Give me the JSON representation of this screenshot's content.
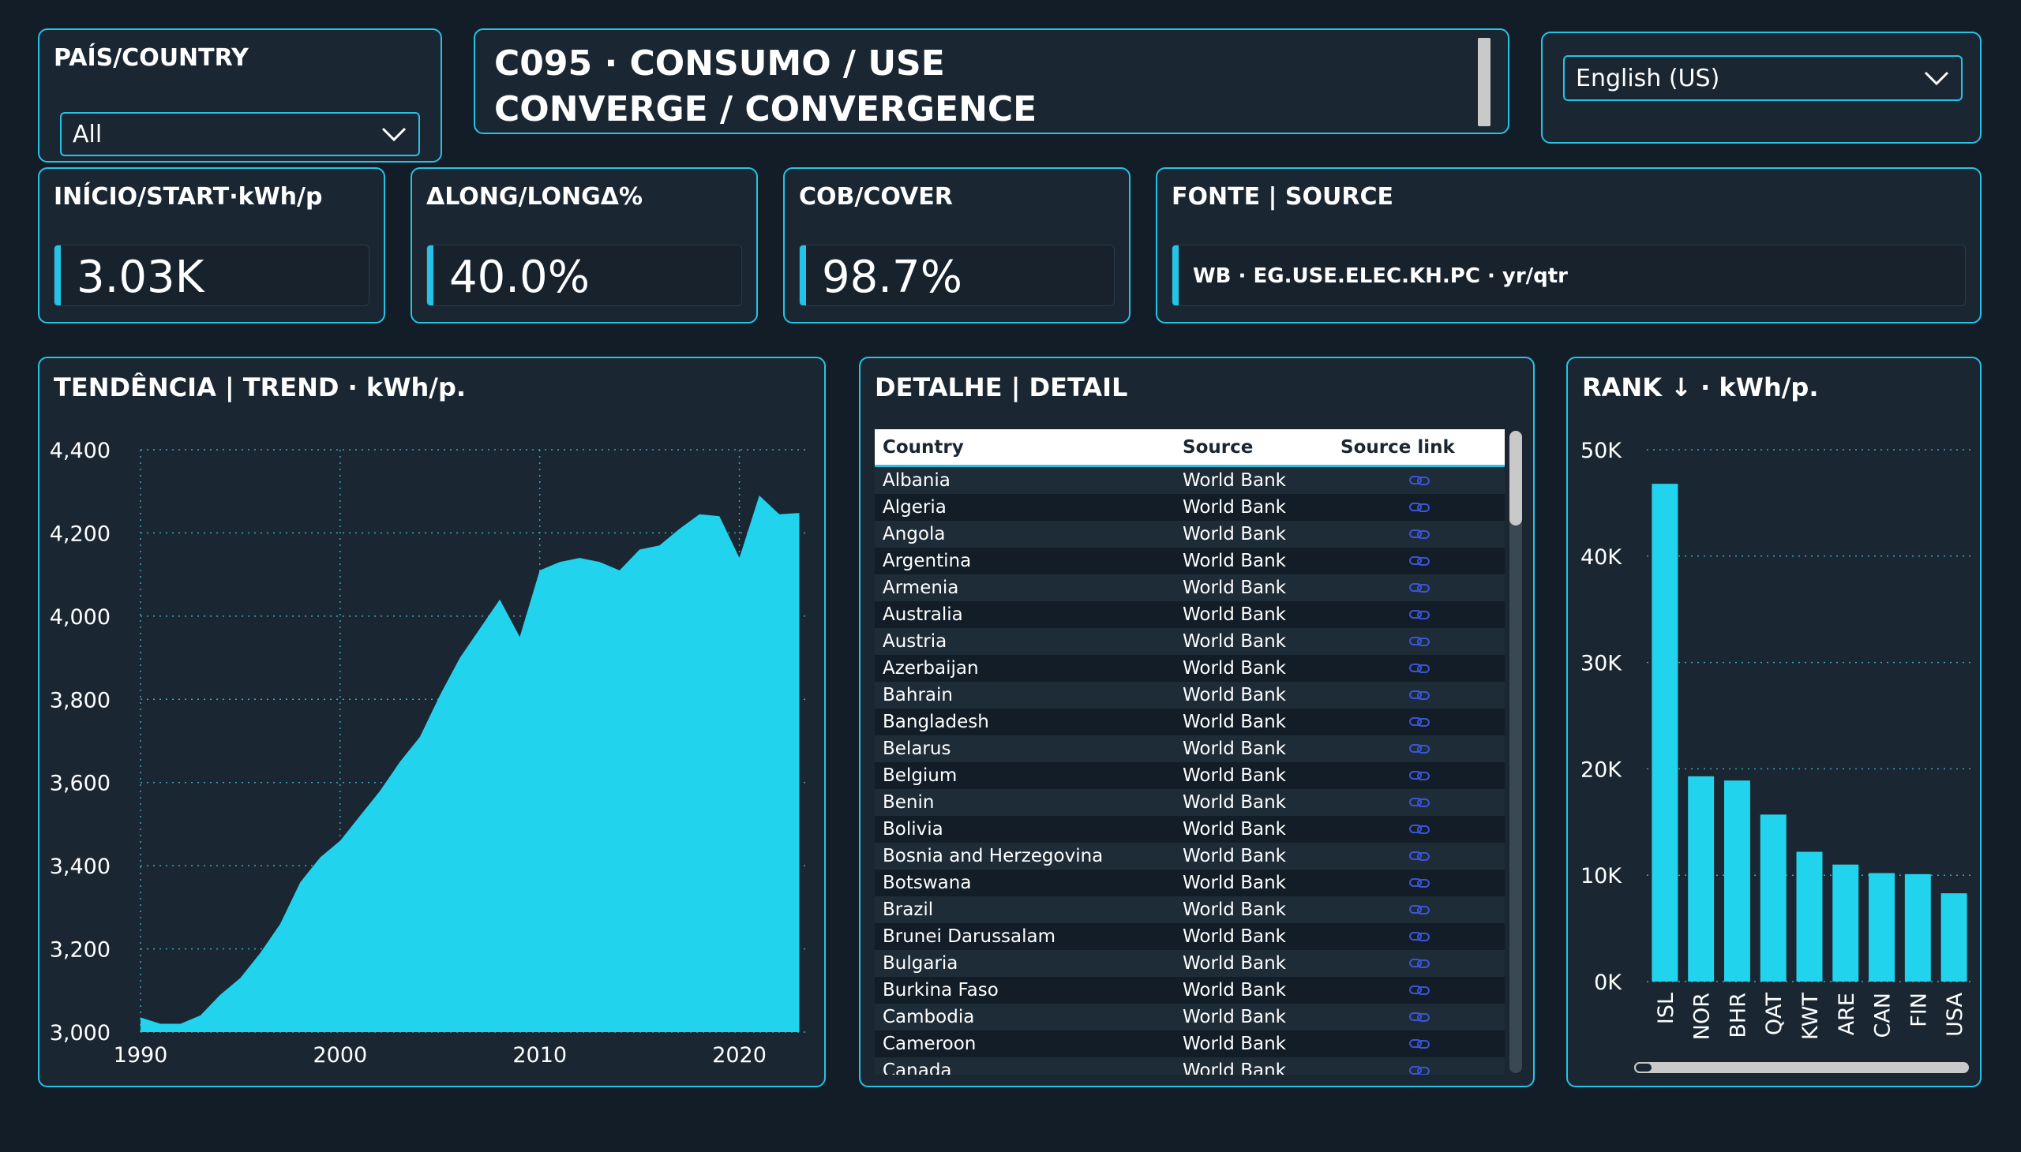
{
  "country_filter": {
    "label": "PAÍS/COUNTRY",
    "value": "All"
  },
  "header": {
    "line1": "C095 · CONSUMO / USE",
    "line2": "CONVERGE / CONVERGENCE"
  },
  "language": {
    "value": "English (US)"
  },
  "kpis": [
    {
      "label": "INÍCIO/START·kWh/p",
      "value": "3.03K"
    },
    {
      "label": "ΔLONG/LONGΔ%",
      "value": "40.0%"
    },
    {
      "label": "COB/COVER",
      "value": "98.7%"
    }
  ],
  "source_card": {
    "label": "FONTE | SOURCE",
    "value": "WB · EG.USE.ELEC.KH.PC · yr/qtr"
  },
  "trend": {
    "title": "TENDÊNCIA | TREND · kWh/p.",
    "chart_data": {
      "type": "area",
      "color": "#22d3ee",
      "x": [
        1990,
        1991,
        1992,
        1993,
        1994,
        1995,
        1996,
        1997,
        1998,
        1999,
        2000,
        2001,
        2002,
        2003,
        2004,
        2005,
        2006,
        2007,
        2008,
        2009,
        2010,
        2011,
        2012,
        2013,
        2014,
        2015,
        2016,
        2017,
        2018,
        2019,
        2020,
        2021,
        2022,
        2023
      ],
      "values": [
        3035,
        3020,
        3020,
        3040,
        3090,
        3130,
        3190,
        3260,
        3360,
        3420,
        3460,
        3520,
        3580,
        3650,
        3710,
        3810,
        3900,
        3970,
        4040,
        3950,
        4110,
        4130,
        4140,
        4130,
        4110,
        4160,
        4170,
        4210,
        4245,
        4240,
        4140,
        4290,
        4245,
        4248
      ],
      "xticks": [
        1990,
        2000,
        2010,
        2020
      ],
      "yticks": [
        "3,000",
        "3,200",
        "3,400",
        "3,600",
        "3,800",
        "4,000",
        "4,200",
        "4,400"
      ],
      "ytick_values": [
        3000,
        3200,
        3400,
        3600,
        3800,
        4000,
        4200,
        4400
      ],
      "xlim": [
        1990,
        2023.3
      ],
      "ylim": [
        3000,
        4400
      ],
      "grid": true
    }
  },
  "detail": {
    "title": "DETALHE | DETAIL",
    "columns": [
      "Country",
      "Source",
      "Source link"
    ],
    "rows": [
      [
        "Albania",
        "World Bank"
      ],
      [
        "Algeria",
        "World Bank"
      ],
      [
        "Angola",
        "World Bank"
      ],
      [
        "Argentina",
        "World Bank"
      ],
      [
        "Armenia",
        "World Bank"
      ],
      [
        "Australia",
        "World Bank"
      ],
      [
        "Austria",
        "World Bank"
      ],
      [
        "Azerbaijan",
        "World Bank"
      ],
      [
        "Bahrain",
        "World Bank"
      ],
      [
        "Bangladesh",
        "World Bank"
      ],
      [
        "Belarus",
        "World Bank"
      ],
      [
        "Belgium",
        "World Bank"
      ],
      [
        "Benin",
        "World Bank"
      ],
      [
        "Bolivia",
        "World Bank"
      ],
      [
        "Bosnia and Herzegovina",
        "World Bank"
      ],
      [
        "Botswana",
        "World Bank"
      ],
      [
        "Brazil",
        "World Bank"
      ],
      [
        "Brunei Darussalam",
        "World Bank"
      ],
      [
        "Bulgaria",
        "World Bank"
      ],
      [
        "Burkina Faso",
        "World Bank"
      ],
      [
        "Cambodia",
        "World Bank"
      ],
      [
        "Cameroon",
        "World Bank"
      ],
      [
        "Canada",
        "World Bank"
      ]
    ],
    "link_icon": "link-icon"
  },
  "rank": {
    "title": "RANK ↓ · kWh/p.",
    "chart_data": {
      "type": "bar",
      "color": "#22d3ee",
      "categories": [
        "ISL",
        "NOR",
        "BHR",
        "QAT",
        "KWT",
        "ARE",
        "CAN",
        "FIN",
        "USA"
      ],
      "values": [
        46800,
        19300,
        18900,
        15700,
        12200,
        11000,
        10200,
        10100,
        8300
      ],
      "yticks": [
        "0K",
        "10K",
        "20K",
        "30K",
        "40K",
        "50K"
      ],
      "ytick_values": [
        0,
        10000,
        20000,
        30000,
        40000,
        50000
      ],
      "ylim": [
        0,
        50000
      ],
      "grid": true
    }
  }
}
